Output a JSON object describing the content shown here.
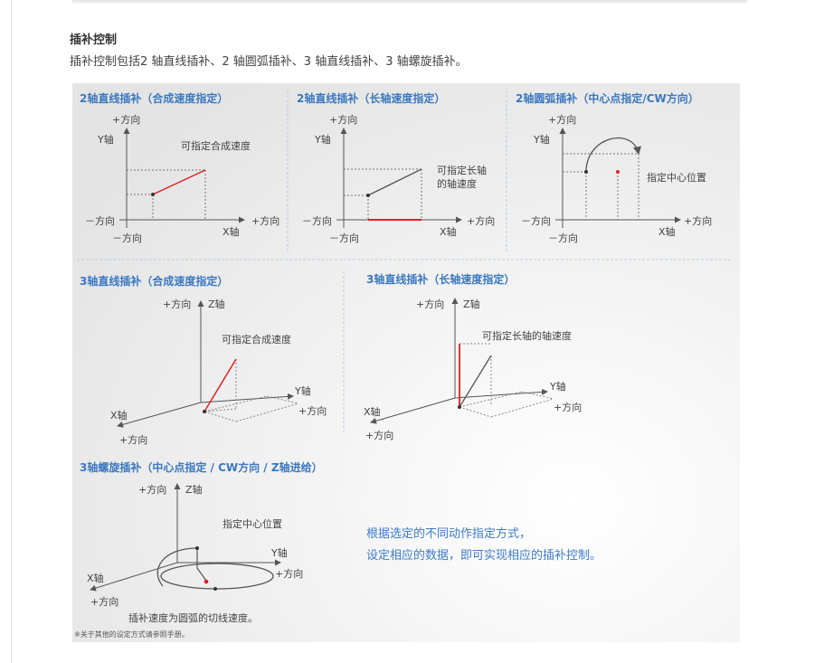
{
  "section": {
    "title": "插补控制",
    "description": "插补控制包括2 轴直线插补、2 轴圆弧插补、3 轴直线插补、3 轴螺旋插补。"
  },
  "diagram": {
    "colors": {
      "title": "#3a78c0",
      "highlight": "#e02020",
      "axis": "#555555",
      "note": "#3d7cc9"
    },
    "panels": [
      {
        "title": "2轴直线插补（合成速度指定）",
        "plus_dir": "+方向",
        "minus_dir": "－方向",
        "x_axis": "X轴",
        "y_axis": "Y轴",
        "caption": "可指定合成速度"
      },
      {
        "title": "2轴直线插补（长轴速度指定）",
        "plus_dir": "+方向",
        "minus_dir": "－方向",
        "x_axis": "X轴",
        "y_axis": "Y轴",
        "caption_line1": "可指定长轴",
        "caption_line2": "的轴速度"
      },
      {
        "title": "2轴圆弧插补（中心点指定/CW方向）",
        "plus_dir": "+方向",
        "minus_dir": "－方向",
        "x_axis": "X轴",
        "y_axis": "Y轴",
        "caption": "指定中心位置"
      },
      {
        "title": "3轴直线插补（合成速度指定）",
        "plus_dir": "+方向",
        "x_axis": "X轴",
        "y_axis": "Y轴",
        "z_axis": "Z轴",
        "caption": "可指定合成速度"
      },
      {
        "title": "3轴直线插补（长轴速度指定）",
        "plus_dir": "+方向",
        "x_axis": "X轴",
        "y_axis": "Y轴",
        "z_axis": "Z轴",
        "caption": "可指定长轴的轴速度"
      },
      {
        "title": "3轴螺旋插补（中心点指定 / CW方向 / Z轴进给）",
        "plus_dir": "+方向",
        "x_axis": "X轴",
        "y_axis": "Y轴",
        "z_axis": "Z轴",
        "caption": "指定中心位置",
        "bottom_caption": "插补速度为圆弧的切线速度。"
      }
    ],
    "note_line1": "根据选定的不同动作指定方式，",
    "note_line2": "设定相应的数据，即可实现相应的插补控制。",
    "footnote": "※关于其他的设定方式请参照手册。"
  }
}
